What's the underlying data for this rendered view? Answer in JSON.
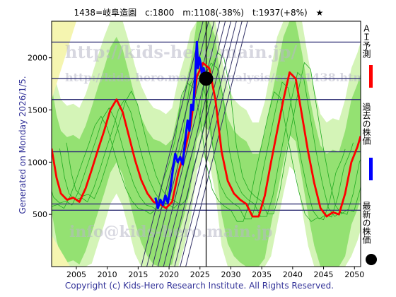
{
  "header": {
    "title": "1438=岐阜造園　c:1800　m:1108(-38%)　t:1937(+8%)　★"
  },
  "side_text": "Generated on Monday 2026/1/5.",
  "legend": {
    "ai": "ＡＩ予測",
    "past": "過去の株価",
    "latest": "最新の株価"
  },
  "watermarks": [
    "http://kids-hero.main.jp/",
    "http://kids-hero.main.jp/analysis/code1438.htm",
    "info@kids-hero.main.jp"
  ],
  "footer": "Copyright (c) Kids-Hero Research Institute. All Rights Reserved.",
  "colors": {
    "ai": "#ff0000",
    "past": "#0000ff",
    "latest": "#000000",
    "band_green": "#88dd66",
    "band_light": "#ccf2aa",
    "band_yellow": "#f5f5b0",
    "grid": "#333377"
  },
  "chart_data": {
    "type": "line",
    "xlim": [
      2001,
      2051
    ],
    "ylim": [
      0,
      2350
    ],
    "x_ticks": [
      2005,
      2010,
      2015,
      2020,
      2025,
      2030,
      2035,
      2040,
      2045,
      2050
    ],
    "y_ticks": [
      500,
      1000,
      1500,
      2000
    ],
    "h_lines": [
      2150,
      1800,
      1600,
      1100,
      600,
      540
    ],
    "v_line_x": 2026,
    "series": [
      {
        "key": "ai",
        "x": [
          2001,
          2001.8,
          2002.5,
          2003.5,
          2004.5,
          2005.5,
          2006.5,
          2007.5,
          2008.5,
          2009.5,
          2010.5,
          2011.5,
          2012.5,
          2013.5,
          2014.5,
          2015.5,
          2016.5,
          2017.5,
          2018.5,
          2019.5,
          2020.5,
          2021.5,
          2022.5,
          2023.5,
          2024.5,
          2025.5,
          2026.5,
          2027.5,
          2028.5,
          2029.5,
          2030.5,
          2031.5,
          2032.5,
          2033.5,
          2034.5,
          2035.5,
          2036.5,
          2037.5,
          2038.5,
          2039.5,
          2040.5,
          2041.5,
          2042.5,
          2043.5,
          2044.5,
          2045.5,
          2046.5,
          2047.5,
          2048.5,
          2049.5,
          2050.5,
          2051
        ],
        "y": [
          1130,
          850,
          700,
          640,
          660,
          620,
          750,
          930,
          1120,
          1300,
          1500,
          1600,
          1480,
          1250,
          1020,
          830,
          700,
          620,
          600,
          560,
          620,
          900,
          1100,
          1350,
          1820,
          1950,
          1900,
          1600,
          1100,
          820,
          700,
          640,
          600,
          480,
          480,
          680,
          1000,
          1300,
          1600,
          1860,
          1800,
          1450,
          1100,
          800,
          560,
          480,
          520,
          500,
          700,
          1000,
          1150,
          1250
        ]
      },
      {
        "key": "past",
        "x": [
          2017.8,
          2018.2,
          2018.6,
          2019.0,
          2019.4,
          2019.8,
          2020.2,
          2020.6,
          2021.0,
          2021.4,
          2021.8,
          2022.2,
          2022.6,
          2023.0,
          2023.3,
          2023.6,
          2023.9,
          2024.2,
          2024.5,
          2024.7,
          2024.9,
          2025.1,
          2025.3,
          2025.6,
          2025.9,
          2026.0
        ],
        "y": [
          660,
          560,
          640,
          590,
          680,
          610,
          740,
          920,
          1080,
          1000,
          1050,
          980,
          1200,
          1400,
          1300,
          1550,
          1500,
          1800,
          2150,
          1900,
          2000,
          1950,
          1850,
          1900,
          1820,
          1800
        ]
      }
    ],
    "latest_point": {
      "x": 2026,
      "y": 1800
    }
  }
}
